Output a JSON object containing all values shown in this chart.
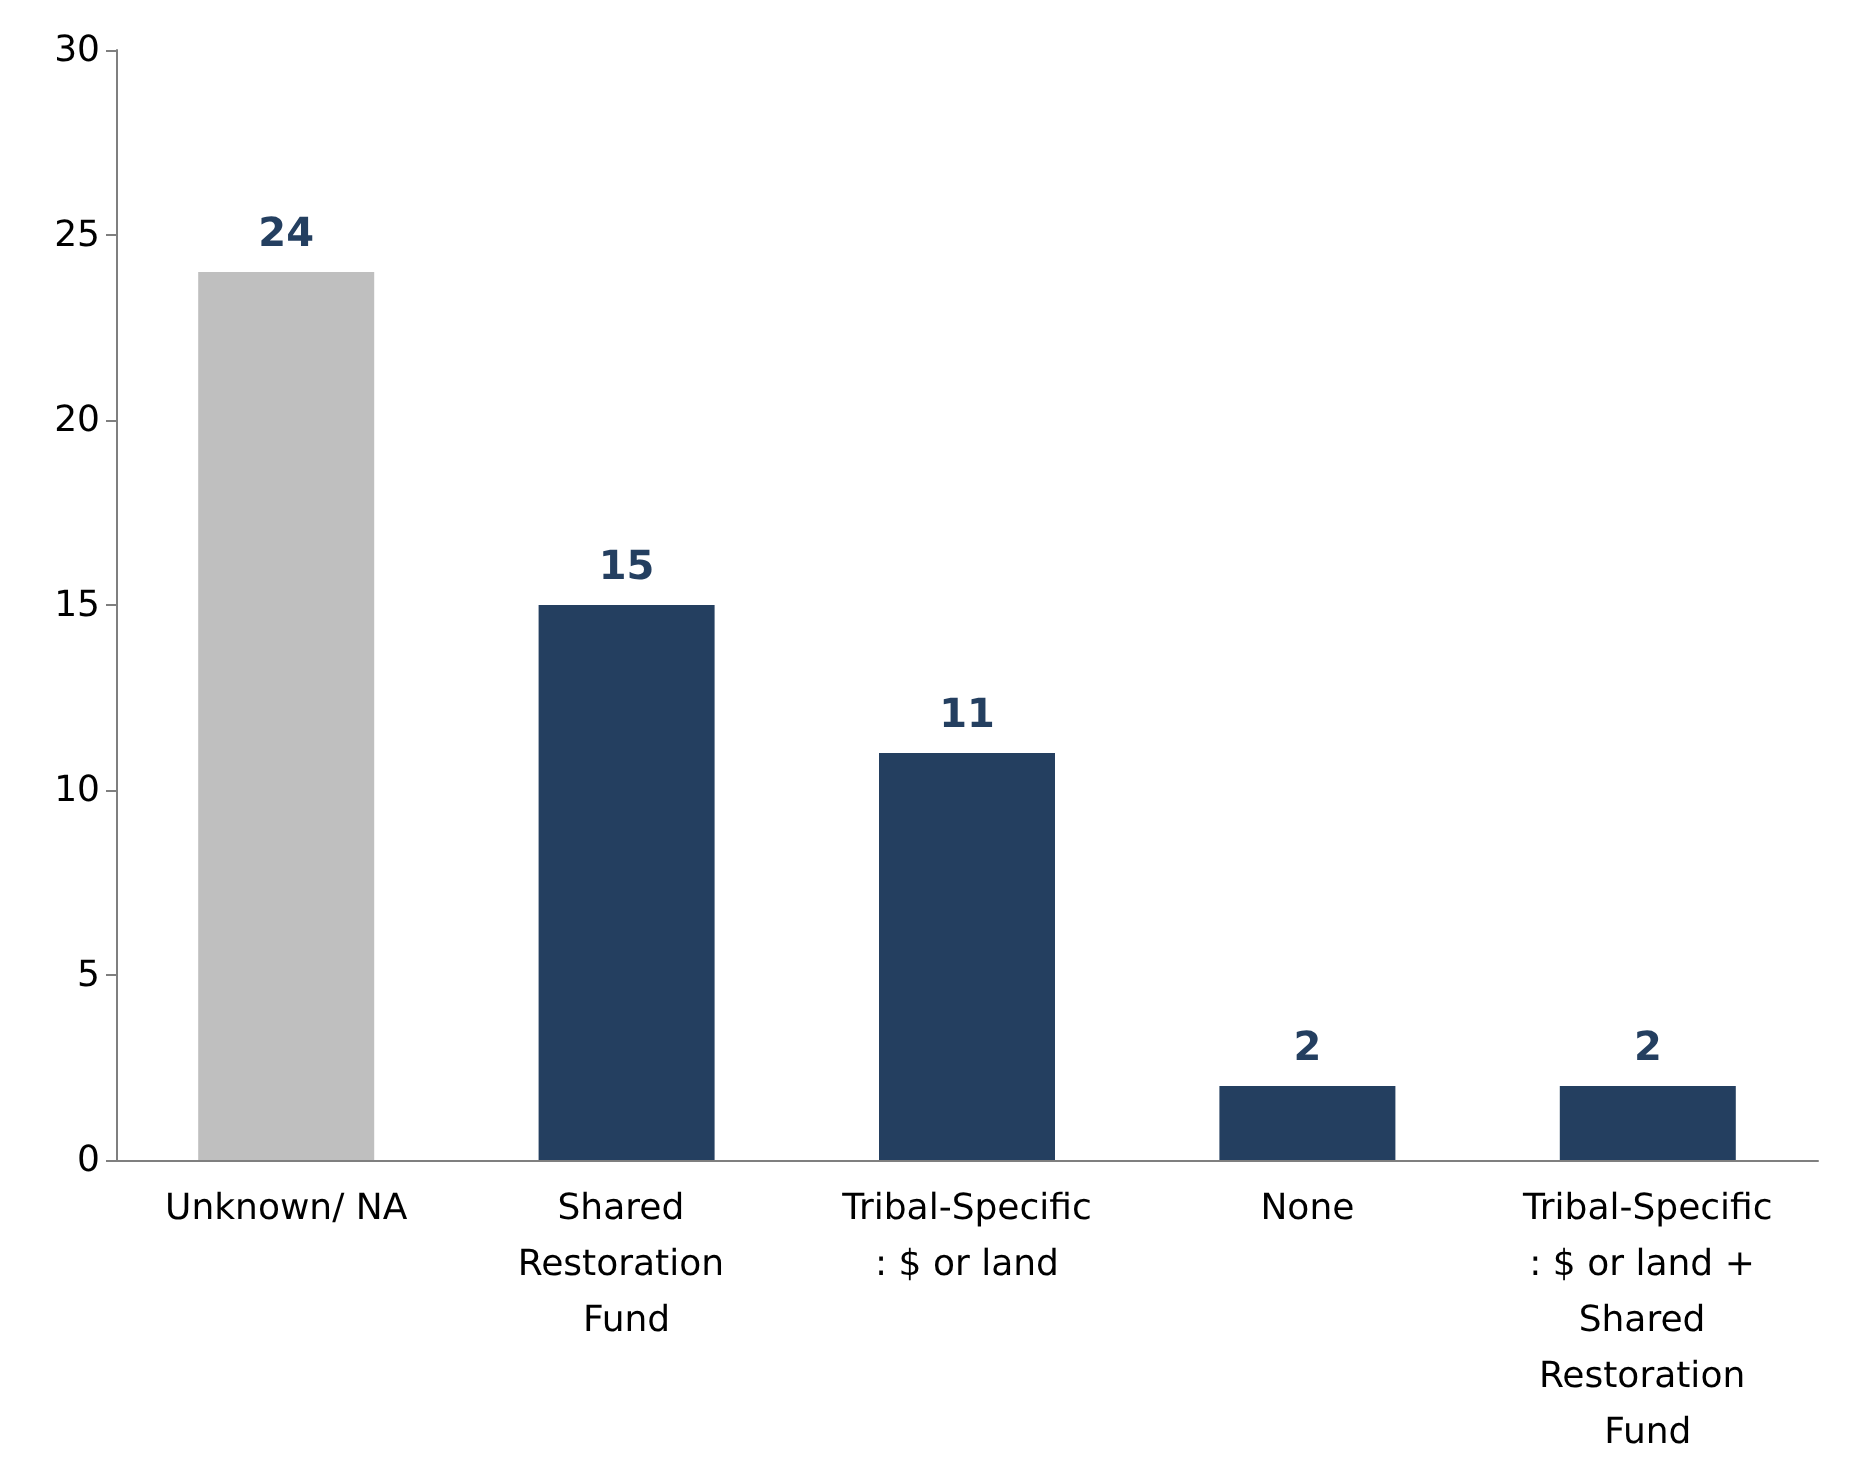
{
  "chart_data": {
    "type": "bar",
    "categories": [
      "Unknown/ NA",
      "Shared Restoration Fund",
      "Tribal-Specific: $ or land",
      "None",
      "Tribal-Specific: $ or land + Shared Restoration Fund"
    ],
    "values": [
      24,
      15,
      11,
      2,
      2
    ],
    "colors": [
      "#bfbfbf",
      "#243f60",
      "#243f60",
      "#243f60",
      "#243f60"
    ],
    "ylim": [
      0,
      30
    ],
    "yticks": [
      0,
      5,
      10,
      15,
      20,
      25,
      30
    ],
    "grid": false,
    "data_labels": true
  }
}
